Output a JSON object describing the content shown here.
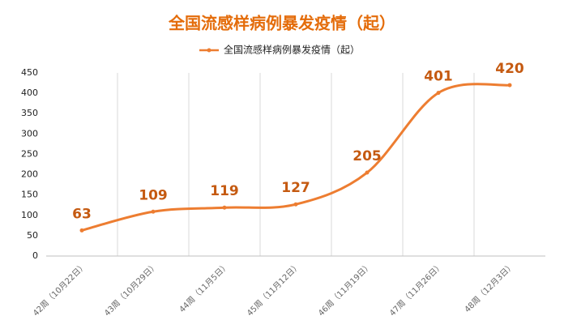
{
  "chart_data": {
    "type": "line",
    "title": "全国流感样病例暴发疫情（起）",
    "categories": [
      "42周（10月22日）",
      "43周（10月29日）",
      "44周（11月5日）",
      "45周（11月12日）",
      "46周（11月19日）",
      "47周（11月26日）",
      "48周（12月3日）"
    ],
    "series": [
      {
        "name": "全国流感样病例暴发疫情（起）",
        "color": "#ed7d31",
        "values": [
          63,
          109,
          119,
          127,
          205,
          401,
          420
        ]
      }
    ],
    "ylim": [
      0,
      450
    ],
    "yticks": [
      0,
      50,
      100,
      150,
      200,
      250,
      300,
      350,
      400,
      450
    ],
    "grid": true,
    "legend": "top",
    "smooth": true,
    "data_labels": true
  }
}
